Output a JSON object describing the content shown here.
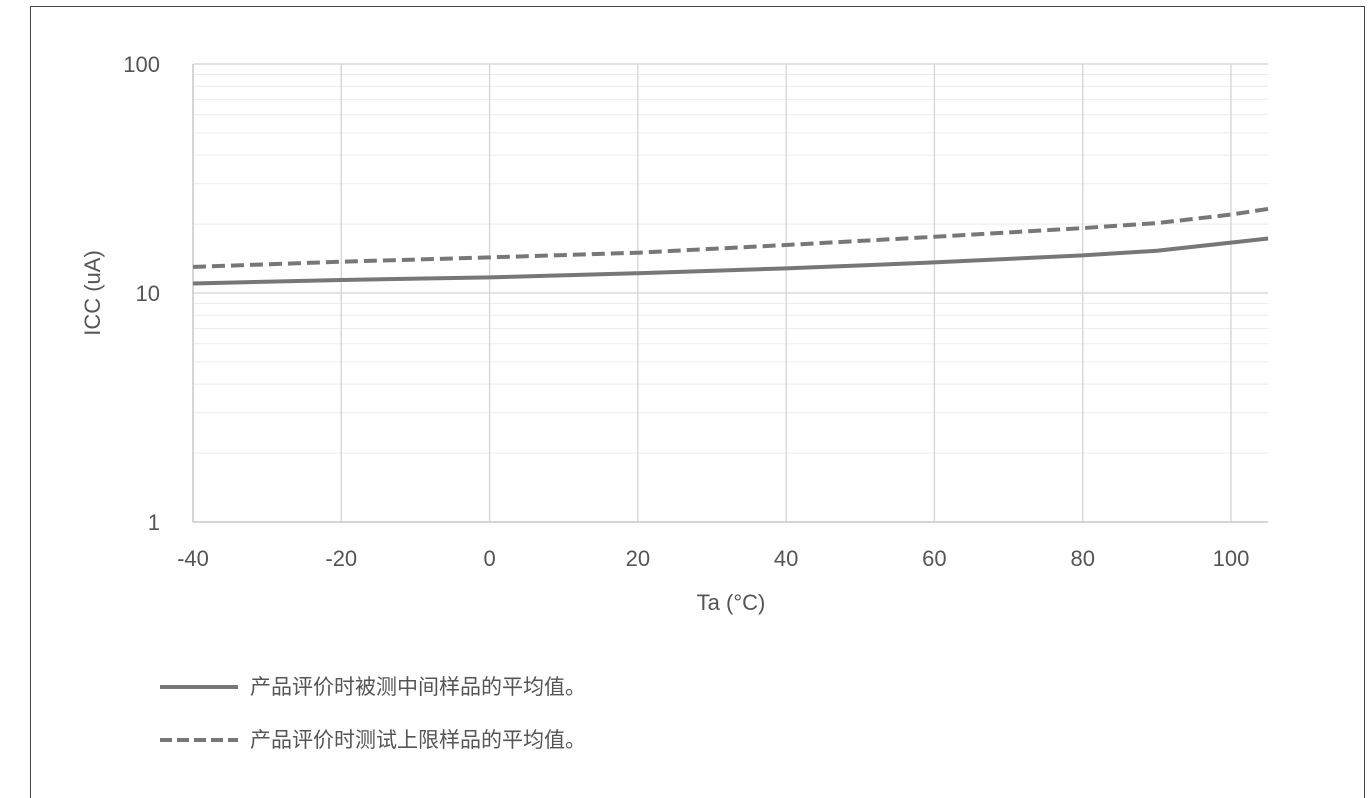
{
  "chart_data": {
    "type": "line",
    "xlabel": "Ta (°C)",
    "ylabel": "ICC (uA)",
    "xlim": [
      -40,
      105
    ],
    "ylim": [
      1,
      100
    ],
    "y_scale": "log",
    "grid": true,
    "legend_position": "bottom-left",
    "x_ticks": [
      "-40",
      "-20",
      "0",
      "20",
      "40",
      "60",
      "80",
      "100"
    ],
    "y_ticks": [
      "1",
      "10",
      "100"
    ],
    "series": [
      {
        "name": "产品评价时被测中间样品的平均值。",
        "style": "solid",
        "color": "#777777",
        "x": [
          -40,
          -20,
          0,
          20,
          40,
          60,
          80,
          90,
          100,
          105
        ],
        "y": [
          11.0,
          11.4,
          11.7,
          12.2,
          12.8,
          13.6,
          14.6,
          15.3,
          16.6,
          17.3
        ]
      },
      {
        "name": "产品评价时测试上限样品的平均值。",
        "style": "dashed",
        "color": "#777777",
        "x": [
          -40,
          -20,
          0,
          20,
          40,
          60,
          80,
          90,
          100,
          105
        ],
        "y": [
          13.0,
          13.7,
          14.3,
          15.0,
          16.2,
          17.6,
          19.2,
          20.2,
          22.0,
          23.3
        ]
      }
    ]
  }
}
